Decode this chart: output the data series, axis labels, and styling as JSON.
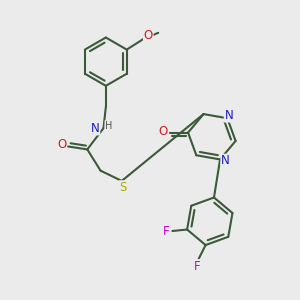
{
  "bg_color": "#ebebeb",
  "bond_color": "#3a5a3a",
  "bond_width": 1.5,
  "atom_colors": {
    "N": "#1a1acc",
    "O": "#cc2020",
    "S": "#aaaa00",
    "F": "#cc00cc",
    "H": "#555555",
    "C": "#3a5a3a"
  },
  "font_size": 8.5,
  "fig_width": 3.0,
  "fig_height": 3.0
}
